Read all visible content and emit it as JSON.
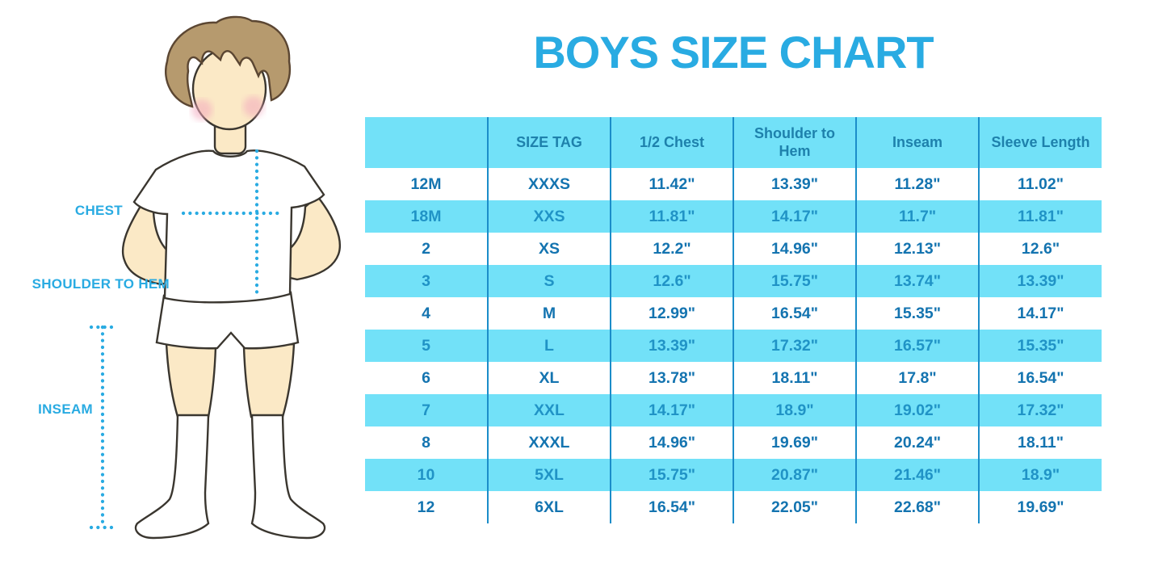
{
  "title": "BOYS SIZE CHART",
  "colors": {
    "accent": "#29ABE2",
    "row_blue": "#72E1F8",
    "grid_line": "#1B8DC9",
    "header_text": "#1E81AC",
    "cell_text": "#1474B0",
    "cell_text_alt": "#2093C6",
    "skin": "#FBE9C6",
    "hair": "#B69A6E",
    "hair_outline": "#5B4632",
    "blush": "#F3A9BE",
    "outline": "#3A362F"
  },
  "diagram": {
    "chest_label": "CHEST",
    "shoulder_to_hem_label": "SHOULDER TO HEM",
    "inseam_label": "INSEAM"
  },
  "chart_data": {
    "type": "table",
    "title": "BOYS SIZE CHART",
    "headers": [
      "",
      "SIZE TAG",
      "1/2 Chest",
      "Shoulder to Hem",
      "Inseam",
      "Sleeve Length"
    ],
    "rows": [
      [
        "12M",
        "XXXS",
        "11.42\"",
        "13.39\"",
        "11.28\"",
        "11.02\""
      ],
      [
        "18M",
        "XXS",
        "11.81\"",
        "14.17\"",
        "11.7\"",
        "11.81\""
      ],
      [
        "2",
        "XS",
        "12.2\"",
        "14.96\"",
        "12.13\"",
        "12.6\""
      ],
      [
        "3",
        "S",
        "12.6\"",
        "15.75\"",
        "13.74\"",
        "13.39\""
      ],
      [
        "4",
        "M",
        "12.99\"",
        "16.54\"",
        "15.35\"",
        "14.17\""
      ],
      [
        "5",
        "L",
        "13.39\"",
        "17.32\"",
        "16.57\"",
        "15.35\""
      ],
      [
        "6",
        "XL",
        "13.78\"",
        "18.11\"",
        "17.8\"",
        "16.54\""
      ],
      [
        "7",
        "XXL",
        "14.17\"",
        "18.9\"",
        "19.02\"",
        "17.32\""
      ],
      [
        "8",
        "XXXL",
        "14.96\"",
        "19.69\"",
        "20.24\"",
        "18.11\""
      ],
      [
        "10",
        "5XL",
        "15.75\"",
        "20.87\"",
        "21.46\"",
        "18.9\""
      ],
      [
        "12",
        "6XL",
        "16.54\"",
        "22.05\"",
        "22.68\"",
        "19.69\""
      ]
    ],
    "units": "inches",
    "layout": {
      "striped": true,
      "stripe_color": "#72E1F8",
      "column_rules_only": true
    }
  }
}
